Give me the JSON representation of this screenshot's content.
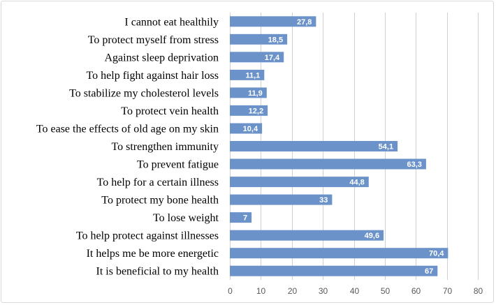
{
  "chart_data": {
    "type": "bar",
    "orientation": "horizontal",
    "categories": [
      "I cannot eat healthily",
      "To protect myself from stress",
      "Against sleep deprivation",
      "To help fight against hair loss",
      "To stabilize my cholesterol levels",
      "To protect vein health",
      "To ease the effects of old age on my skin",
      "To strengthen immunity",
      "To prevent fatigue",
      "To help for a certain illness",
      "To protect my bone health",
      "To lose weight",
      "To help protect against illnesses",
      "It helps me be more energetic",
      "It is beneficial to my health"
    ],
    "values": [
      27.8,
      18.5,
      17.4,
      11.1,
      11.9,
      12.2,
      10.4,
      54.1,
      63.3,
      44.8,
      33,
      7,
      49.6,
      70.4,
      67
    ],
    "value_labels": [
      "27,8",
      "18,5",
      "17,4",
      "11,1",
      "11,9",
      "12,2",
      "10,4",
      "54,1",
      "63,3",
      "44,8",
      "33",
      "7",
      "49,6",
      "70,4",
      "67"
    ],
    "xlim": [
      0,
      80
    ],
    "xticks": [
      "0",
      "10",
      "20",
      "30",
      "40",
      "50",
      "60",
      "70",
      "80"
    ],
    "grid": true,
    "bar_color": "#6c93c9",
    "title": "",
    "xlabel": "",
    "ylabel": ""
  }
}
